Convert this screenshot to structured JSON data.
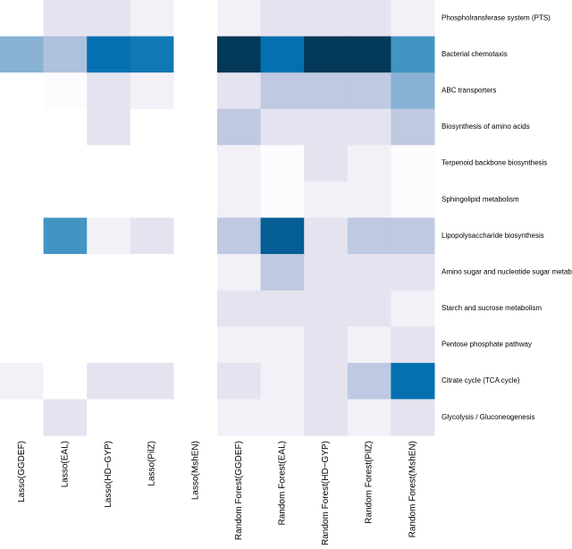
{
  "chart_data": {
    "type": "heatmap",
    "columns": [
      "Lasso(GGDEF)",
      "Lasso(EAL)",
      "Lasso(HD−GYP)",
      "Lasso(PilZ)",
      "Lasso(MshEN)",
      "Random Forest(GGDEF)",
      "Random Forest(EAL)",
      "Random Forest(HD−GYP)",
      "Random Forest(PilZ)",
      "Random Forest(MshEN)"
    ],
    "rows": [
      "Phospholransferase system (PTS)",
      "Bacterial chemotaxis",
      "ABC transporters",
      "Biosynthesis of amino acids",
      "Terpenoid backbone biosynthesis",
      "Sphingolipid metabolism",
      "Lipopolysaccharide biosynthesis",
      "Amino sugar and nucleotide sugar metabol",
      "Starch and sucrose metabolism",
      "Pentose phosphate pathway",
      "Citrate cycle (TCA cycle)",
      "Glycolysis / Gluconeogenesis"
    ],
    "values": [
      [
        0,
        0.15,
        0.15,
        0.08,
        0,
        0.08,
        0.15,
        0.15,
        0.15,
        0.08
      ],
      [
        0.45,
        0.35,
        0.75,
        0.72,
        0,
        1.0,
        0.75,
        1.0,
        1.0,
        0.6
      ],
      [
        0,
        0.02,
        0.15,
        0.08,
        0,
        0.15,
        0.3,
        0.3,
        0.3,
        0.45
      ],
      [
        0,
        0,
        0.15,
        0,
        0,
        0.3,
        0.15,
        0.15,
        0.15,
        0.3
      ],
      [
        0,
        0,
        0,
        0,
        0,
        0.08,
        0.02,
        0.15,
        0.08,
        0.02
      ],
      [
        0,
        0,
        0,
        0,
        0,
        0.08,
        0.02,
        0.08,
        0.08,
        0.02
      ],
      [
        0,
        0.6,
        0.08,
        0.15,
        0,
        0.3,
        0.85,
        0.15,
        0.3,
        0.3
      ],
      [
        0,
        0,
        0,
        0,
        0,
        0.08,
        0.3,
        0.15,
        0.15,
        0.15
      ],
      [
        0,
        0,
        0,
        0,
        0,
        0.15,
        0.15,
        0.15,
        0.15,
        0.08
      ],
      [
        0,
        0,
        0,
        0,
        0,
        0.08,
        0.08,
        0.15,
        0.08,
        0.15
      ],
      [
        0.08,
        0,
        0.15,
        0.15,
        0,
        0.15,
        0.08,
        0.15,
        0.3,
        0.75
      ],
      [
        0,
        0.15,
        0,
        0,
        0,
        0.08,
        0.08,
        0.15,
        0.08,
        0.15
      ]
    ],
    "zlim": [
      0,
      1
    ],
    "colorscale": [
      "#ffffff",
      "#ece7f2",
      "#d0d1e6",
      "#a6bddb",
      "#74a9cf",
      "#3690c0",
      "#0570b0",
      "#045a8d",
      "#023858"
    ]
  }
}
